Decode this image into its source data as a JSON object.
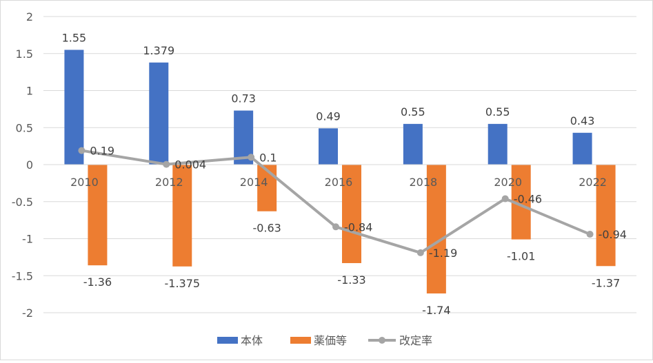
{
  "chart_data": {
    "type": "bar",
    "categories": [
      "2010",
      "2012",
      "2014",
      "2016",
      "2018",
      "2020",
      "2022"
    ],
    "series": [
      {
        "name": "本体",
        "kind": "bar",
        "color": "#4472C4",
        "values": [
          1.55,
          1.379,
          0.73,
          0.49,
          0.55,
          0.55,
          0.43
        ],
        "labels": [
          "1.55",
          "1.379",
          "0.73",
          "0.49",
          "0.55",
          "0.55",
          "0.43"
        ]
      },
      {
        "name": "薬価等",
        "kind": "bar",
        "color": "#ED7D31",
        "values": [
          -1.36,
          -1.375,
          -0.63,
          -1.33,
          -1.74,
          -1.01,
          -1.37
        ],
        "labels": [
          "-1.36",
          "-1.375",
          "-0.63",
          "-1.33",
          "-1.74",
          "-1.01",
          "-1.37"
        ]
      },
      {
        "name": "改定率",
        "kind": "line",
        "color": "#A5A5A5",
        "values": [
          0.19,
          0.004,
          0.1,
          -0.84,
          -1.19,
          -0.46,
          -0.94
        ],
        "labels": [
          "0.19",
          "0.004",
          "0.1",
          "-0.84",
          "-1.19",
          "-0.46",
          "-0.94"
        ]
      }
    ],
    "ylim": [
      -2,
      2
    ],
    "yticks": [
      "2",
      "1.5",
      "1",
      "0.5",
      "0",
      "-0.5",
      "-1",
      "-1.5",
      "-2"
    ],
    "grid": true,
    "legend": "bottom",
    "title": "",
    "xlabel": "",
    "ylabel": ""
  }
}
